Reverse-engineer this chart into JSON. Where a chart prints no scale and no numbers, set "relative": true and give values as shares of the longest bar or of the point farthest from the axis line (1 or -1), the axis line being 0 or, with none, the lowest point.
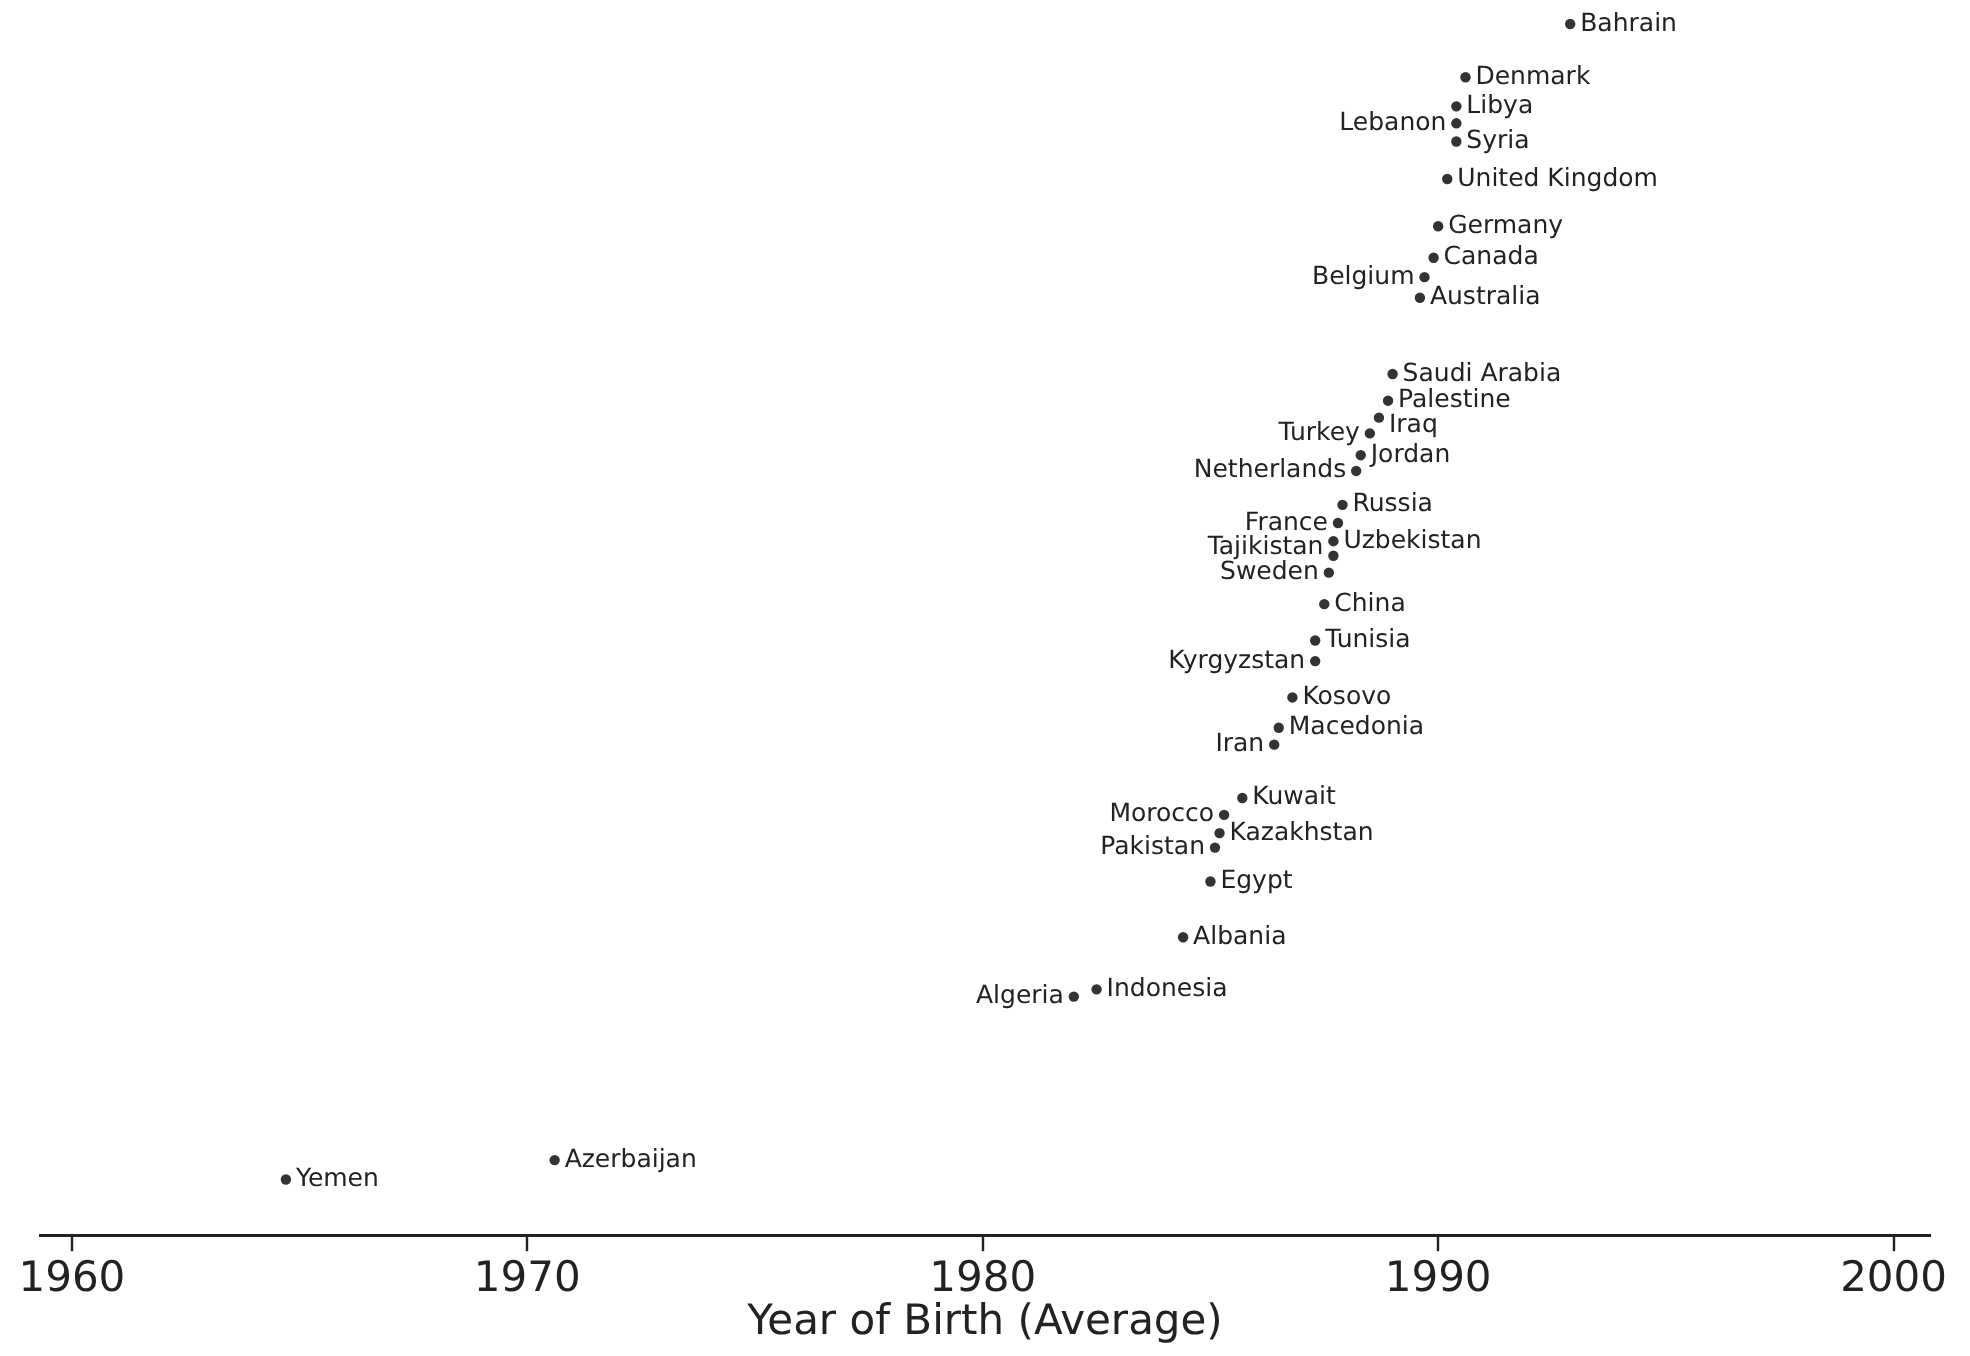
{
  "chart_data": {
    "type": "scatter",
    "xlabel": "Year of Birth (Average)",
    "relative": true,
    "marker": "circle",
    "grid": false,
    "legend": false,
    "xlim": [
      1959.3,
      2000.8
    ],
    "xticks": [
      1960,
      1970,
      1980,
      1990,
      2000
    ],
    "series": [
      {
        "color": "#333333",
        "x": [
          1992.9,
          1990.6,
          1990.4,
          1990.4,
          1990.4,
          1990.2,
          1990.0,
          1989.9,
          1989.7,
          1989.6,
          1989.0,
          1988.9,
          1988.7,
          1988.5,
          1988.3,
          1988.2,
          1987.9,
          1987.8,
          1987.7,
          1987.7,
          1987.6,
          1987.5,
          1987.3,
          1987.3,
          1986.8,
          1986.5,
          1986.4,
          1985.7,
          1985.3,
          1985.2,
          1985.1,
          1985.0,
          1984.4,
          1982.5,
          1982.0,
          1970.6,
          1964.7
        ],
        "values": [
          1.0,
          0.956,
          0.932,
          0.918,
          0.903,
          0.872,
          0.833,
          0.807,
          0.791,
          0.774,
          0.711,
          0.689,
          0.675,
          0.662,
          0.644,
          0.631,
          0.603,
          0.588,
          0.573,
          0.561,
          0.547,
          0.521,
          0.491,
          0.474,
          0.444,
          0.419,
          0.405,
          0.361,
          0.347,
          0.332,
          0.32,
          0.292,
          0.246,
          0.203,
          0.197,
          0.062,
          0.046
        ]
      }
    ],
    "annotations": [
      {
        "text": "Bahrain",
        "x": 1992.9,
        "y": 1.0
      },
      {
        "text": "Denmark",
        "x": 1990.6,
        "y": 0.956
      },
      {
        "text": "Libya",
        "x": 1990.4,
        "y": 0.932
      },
      {
        "text": "Lebanon",
        "x": 1990.4,
        "y": 0.918
      },
      {
        "text": "Syria",
        "x": 1990.4,
        "y": 0.903
      },
      {
        "text": "United Kingdom",
        "x": 1990.2,
        "y": 0.872
      },
      {
        "text": "Germany",
        "x": 1990.0,
        "y": 0.833
      },
      {
        "text": "Canada",
        "x": 1989.9,
        "y": 0.807
      },
      {
        "text": "Belgium",
        "x": 1989.7,
        "y": 0.791
      },
      {
        "text": "Australia",
        "x": 1989.6,
        "y": 0.774
      },
      {
        "text": "Saudi Arabia",
        "x": 1989.0,
        "y": 0.711
      },
      {
        "text": "Palestine",
        "x": 1988.9,
        "y": 0.689
      },
      {
        "text": "Iraq",
        "x": 1988.7,
        "y": 0.675
      },
      {
        "text": "Turkey",
        "x": 1988.5,
        "y": 0.662
      },
      {
        "text": "Jordan",
        "x": 1988.3,
        "y": 0.644
      },
      {
        "text": "Netherlands",
        "x": 1988.2,
        "y": 0.631
      },
      {
        "text": "Russia",
        "x": 1987.9,
        "y": 0.603
      },
      {
        "text": "France",
        "x": 1987.8,
        "y": 0.588
      },
      {
        "text": "Uzbekistan",
        "x": 1987.7,
        "y": 0.573
      },
      {
        "text": "Tajikistan",
        "x": 1987.7,
        "y": 0.561
      },
      {
        "text": "Sweden",
        "x": 1987.6,
        "y": 0.547
      },
      {
        "text": "China",
        "x": 1987.5,
        "y": 0.521
      },
      {
        "text": "Tunisia",
        "x": 1987.3,
        "y": 0.491
      },
      {
        "text": "Kyrgyzstan",
        "x": 1987.3,
        "y": 0.474
      },
      {
        "text": "Kosovo",
        "x": 1986.8,
        "y": 0.444
      },
      {
        "text": "Macedonia",
        "x": 1986.5,
        "y": 0.419
      },
      {
        "text": "Iran",
        "x": 1986.4,
        "y": 0.405
      },
      {
        "text": "Kuwait",
        "x": 1985.7,
        "y": 0.361
      },
      {
        "text": "Morocco",
        "x": 1985.3,
        "y": 0.347
      },
      {
        "text": "Kazakhstan",
        "x": 1985.2,
        "y": 0.332
      },
      {
        "text": "Pakistan",
        "x": 1985.1,
        "y": 0.32
      },
      {
        "text": "Egypt",
        "x": 1985.0,
        "y": 0.292
      },
      {
        "text": "Albania",
        "x": 1984.4,
        "y": 0.246
      },
      {
        "text": "Indonesia",
        "x": 1982.5,
        "y": 0.203
      },
      {
        "text": "Algeria",
        "x": 1982.0,
        "y": 0.197
      },
      {
        "text": "Azerbaijan",
        "x": 1970.6,
        "y": 0.062
      },
      {
        "text": "Yemen",
        "x": 1964.7,
        "y": 0.046
      }
    ]
  }
}
